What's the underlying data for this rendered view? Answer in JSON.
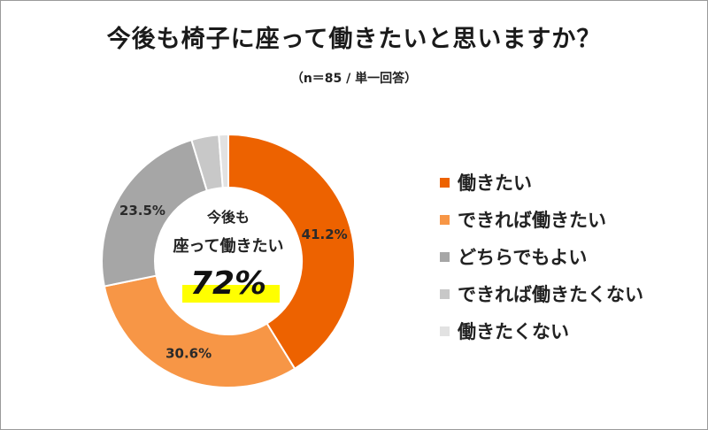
{
  "title": "今後も椅子に座って働きたいと思いますか？",
  "subtitle": "（n＝85 / 単一回答）",
  "center_label": {
    "line1": "今後も",
    "line2": "座って働きたい",
    "value": "72%",
    "highlight_color": "#ffff00"
  },
  "chart_data": {
    "type": "pie",
    "title": "今後も椅子に座って働きたいと思いますか？",
    "subtitle": "（n＝85 / 単一回答）",
    "categories": [
      "働きたい",
      "できれば働きたい",
      "どちらでもよい",
      "できれば働きたくない",
      "働きたくない"
    ],
    "values": [
      41.2,
      30.6,
      23.5,
      3.5,
      1.2
    ],
    "data_labels": [
      "41.2%",
      "30.6%",
      "23.5%",
      "",
      ""
    ],
    "colors": [
      "#ed6200",
      "#f79646",
      "#a6a6a6",
      "#c8c8c8",
      "#e2e2e2"
    ],
    "donut": true,
    "legend_position": "right"
  }
}
